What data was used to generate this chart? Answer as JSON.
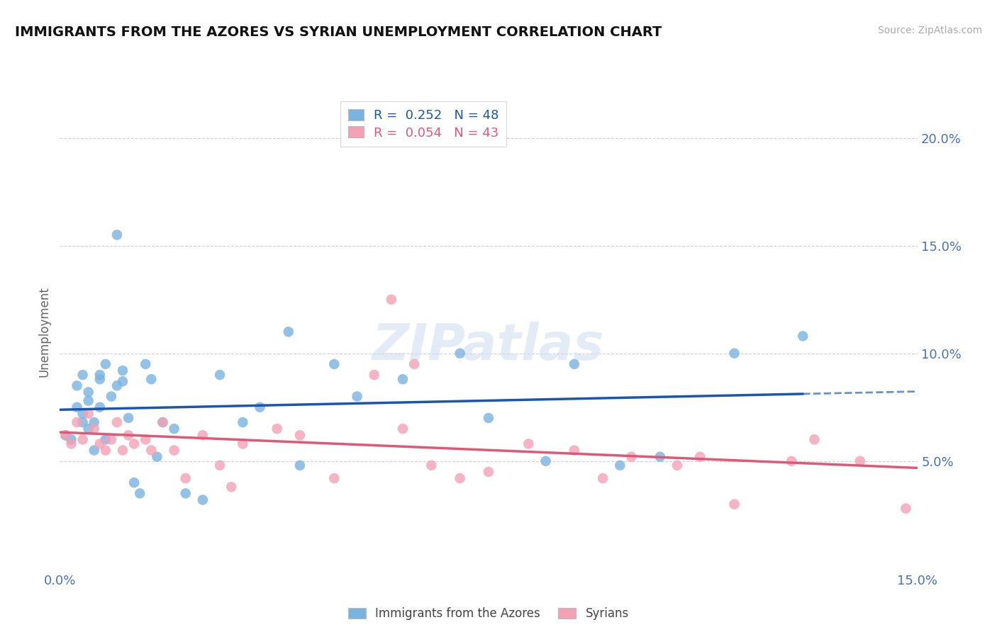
{
  "title": "IMMIGRANTS FROM THE AZORES VS SYRIAN UNEMPLOYMENT CORRELATION CHART",
  "source": "Source: ZipAtlas.com",
  "ylabel": "Unemployment",
  "xlim": [
    0.0,
    0.15
  ],
  "ylim": [
    0.0,
    0.22
  ],
  "azores_color": "#7ab3e0",
  "syrian_color": "#f4a0b5",
  "azores_line_color": "#1a56b0",
  "syrian_line_color": "#e05878",
  "background_color": "#ffffff",
  "watermark_text": "ZIPatlas",
  "azores_scatter_x": [
    0.001,
    0.002,
    0.003,
    0.003,
    0.004,
    0.004,
    0.004,
    0.005,
    0.005,
    0.005,
    0.006,
    0.006,
    0.007,
    0.007,
    0.007,
    0.008,
    0.008,
    0.009,
    0.01,
    0.01,
    0.011,
    0.011,
    0.012,
    0.013,
    0.014,
    0.015,
    0.016,
    0.017,
    0.018,
    0.02,
    0.022,
    0.025,
    0.028,
    0.032,
    0.035,
    0.04,
    0.042,
    0.048,
    0.052,
    0.06,
    0.07,
    0.075,
    0.085,
    0.09,
    0.098,
    0.105,
    0.118,
    0.13
  ],
  "azores_scatter_y": [
    0.062,
    0.06,
    0.085,
    0.075,
    0.068,
    0.072,
    0.09,
    0.065,
    0.078,
    0.082,
    0.055,
    0.068,
    0.075,
    0.09,
    0.088,
    0.06,
    0.095,
    0.08,
    0.155,
    0.085,
    0.092,
    0.087,
    0.07,
    0.04,
    0.035,
    0.095,
    0.088,
    0.052,
    0.068,
    0.065,
    0.035,
    0.032,
    0.09,
    0.068,
    0.075,
    0.11,
    0.048,
    0.095,
    0.08,
    0.088,
    0.1,
    0.07,
    0.05,
    0.095,
    0.048,
    0.052,
    0.1,
    0.108
  ],
  "syrian_scatter_x": [
    0.001,
    0.002,
    0.003,
    0.004,
    0.005,
    0.006,
    0.007,
    0.008,
    0.009,
    0.01,
    0.011,
    0.012,
    0.013,
    0.015,
    0.016,
    0.018,
    0.02,
    0.022,
    0.025,
    0.028,
    0.03,
    0.032,
    0.038,
    0.042,
    0.048,
    0.055,
    0.058,
    0.06,
    0.062,
    0.065,
    0.07,
    0.075,
    0.082,
    0.09,
    0.095,
    0.1,
    0.108,
    0.112,
    0.118,
    0.128,
    0.132,
    0.14,
    0.148
  ],
  "syrian_scatter_y": [
    0.062,
    0.058,
    0.068,
    0.06,
    0.072,
    0.065,
    0.058,
    0.055,
    0.06,
    0.068,
    0.055,
    0.062,
    0.058,
    0.06,
    0.055,
    0.068,
    0.055,
    0.042,
    0.062,
    0.048,
    0.038,
    0.058,
    0.065,
    0.062,
    0.042,
    0.09,
    0.125,
    0.065,
    0.095,
    0.048,
    0.042,
    0.045,
    0.058,
    0.055,
    0.042,
    0.052,
    0.048,
    0.052,
    0.03,
    0.05,
    0.06,
    0.05,
    0.028
  ],
  "azores_R": "0.252",
  "azores_N": "48",
  "syrian_R": "0.054",
  "syrian_N": "43"
}
